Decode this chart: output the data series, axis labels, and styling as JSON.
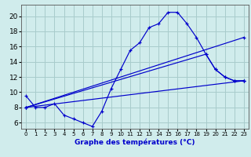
{
  "xlabel": "Graphe des températures (°C)",
  "bg_color": "#d0ecec",
  "grid_color": "#a8cccc",
  "line_color": "#0000cc",
  "x_ticks": [
    0,
    1,
    2,
    3,
    4,
    5,
    6,
    7,
    8,
    9,
    10,
    11,
    12,
    13,
    14,
    15,
    16,
    17,
    18,
    19,
    20,
    21,
    22,
    23
  ],
  "y_ticks": [
    6,
    8,
    10,
    12,
    14,
    16,
    18,
    20
  ],
  "xlim": [
    -0.5,
    23.5
  ],
  "ylim": [
    5.2,
    21.5
  ],
  "series": [
    {
      "x": [
        0,
        1,
        2,
        3,
        4,
        5,
        6,
        7,
        8,
        9,
        10,
        11,
        12,
        13,
        14,
        15,
        16,
        17,
        18,
        19,
        20,
        21,
        22,
        23
      ],
      "y": [
        9.5,
        8.0,
        8.0,
        8.5,
        7.0,
        6.5,
        6.0,
        5.5,
        7.5,
        10.5,
        13.0,
        15.5,
        16.5,
        18.5,
        19.0,
        20.5,
        20.5,
        19.0,
        17.2,
        15.0,
        13.0,
        12.0,
        11.5,
        11.5
      ]
    },
    {
      "x": [
        0,
        23
      ],
      "y": [
        8.0,
        17.2
      ]
    },
    {
      "x": [
        0,
        19,
        20,
        21,
        22,
        23
      ],
      "y": [
        8.0,
        15.0,
        13.0,
        12.0,
        11.5,
        11.5
      ]
    },
    {
      "x": [
        0,
        23
      ],
      "y": [
        8.0,
        11.5
      ]
    }
  ]
}
